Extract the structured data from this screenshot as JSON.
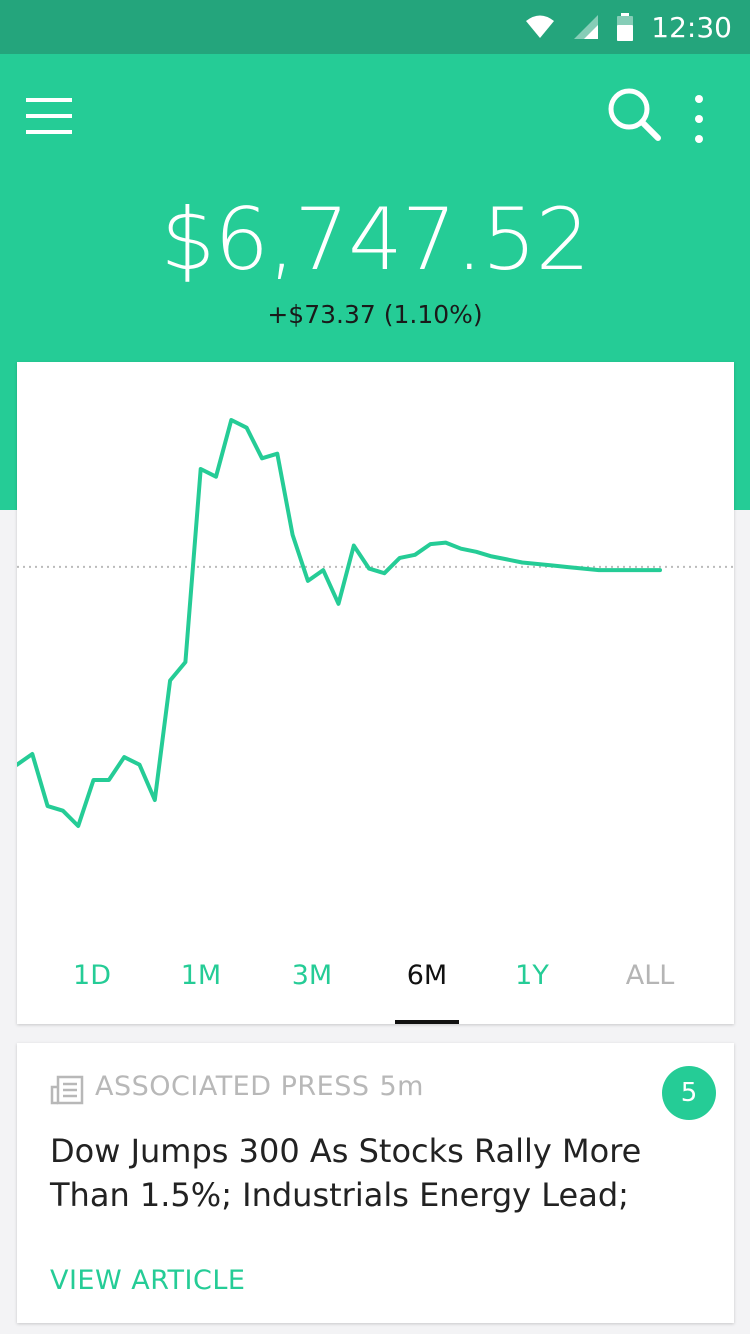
{
  "status_bar": {
    "time": "12:30",
    "icons": [
      "wifi-icon",
      "signal-icon",
      "battery-icon"
    ]
  },
  "header": {
    "portfolio_value": "$6,747.52",
    "portfolio_change": "+$73.37 (1.10%)",
    "icons": [
      "menu-icon",
      "search-icon",
      "more-vertical-icon"
    ]
  },
  "chart_data": {
    "type": "line",
    "title": "",
    "xlabel": "",
    "ylabel": "",
    "x": [
      0,
      1,
      2,
      3,
      4,
      5,
      6,
      7,
      8,
      9,
      10,
      11,
      12,
      13,
      14,
      15,
      16,
      17,
      18,
      19,
      20,
      21,
      22,
      23,
      24,
      25,
      26,
      27,
      28,
      29,
      30,
      31,
      32,
      33,
      34,
      35,
      36,
      37,
      38,
      39,
      40,
      41,
      42
    ],
    "y": [
      6545,
      6552,
      6518,
      6515,
      6505,
      6535,
      6535,
      6550,
      6545,
      6522,
      6600,
      6612,
      6738,
      6733,
      6770,
      6765,
      6745,
      6748,
      6695,
      6665,
      6672,
      6650,
      6688,
      6673,
      6670,
      6680,
      6682,
      6689,
      6690,
      6686,
      6684,
      6681,
      6679,
      6677,
      6676,
      6675,
      6674,
      6673,
      6672,
      6672,
      6672,
      6672,
      6672
    ],
    "reference_line": 6674.15,
    "grid": false,
    "colors": {
      "line": "#25cc96",
      "reference": "#bbbbbb"
    }
  },
  "range_tabs": [
    {
      "label": "1D",
      "state": "normal"
    },
    {
      "label": "1M",
      "state": "normal"
    },
    {
      "label": "3M",
      "state": "normal"
    },
    {
      "label": "6M",
      "state": "active"
    },
    {
      "label": "1Y",
      "state": "normal"
    },
    {
      "label": "ALL",
      "state": "muted"
    }
  ],
  "news": {
    "source": "ASSOCIATED PRESS",
    "age": "5m",
    "badge_count": "5",
    "headline": "Dow Jumps 300 As Stocks Rally More Than 1.5%; Industrials Energy Lead;",
    "action_label": "VIEW ARTICLE",
    "source_icon": "newspaper-icon"
  },
  "colors": {
    "brand": "#25cc96",
    "status_bar": "#24a57c",
    "background": "#f3f3f5"
  }
}
